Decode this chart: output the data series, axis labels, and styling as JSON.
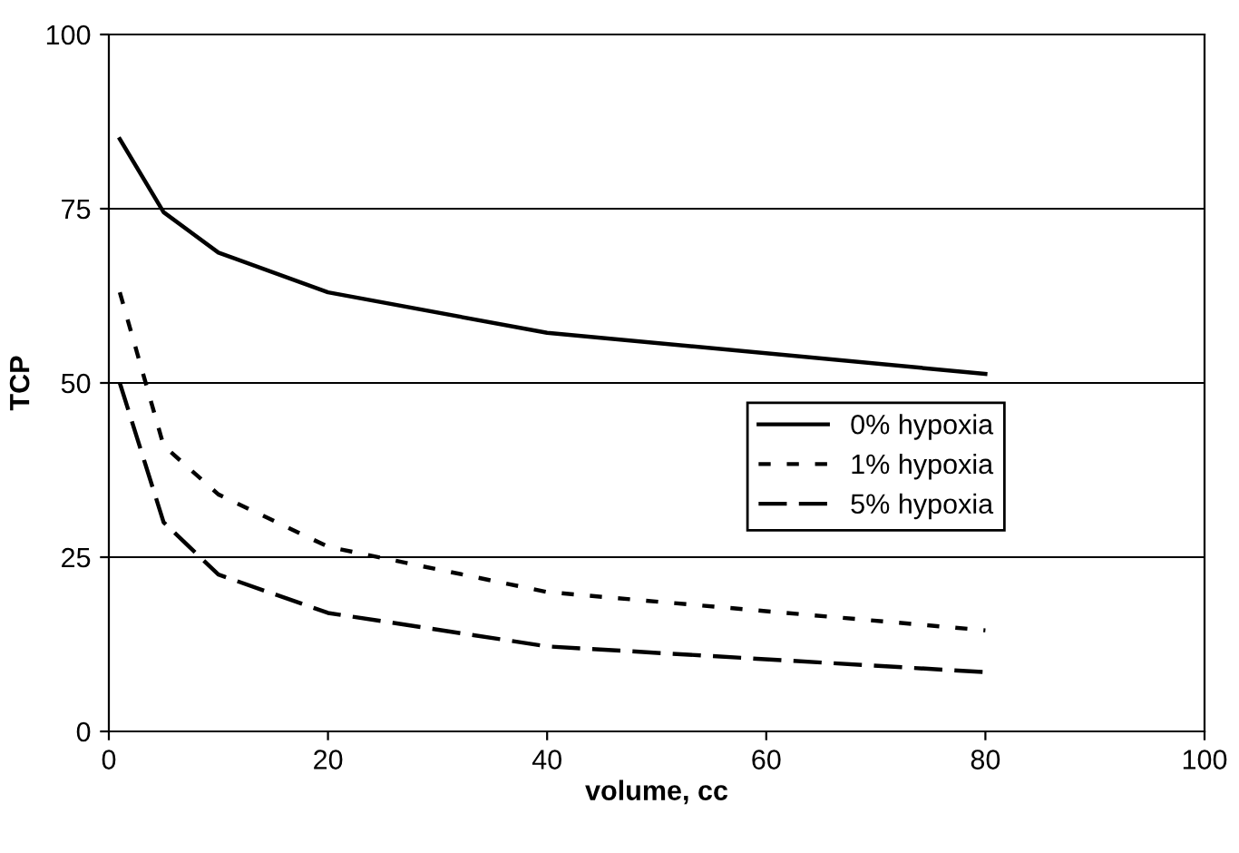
{
  "chart_data": {
    "type": "line",
    "xlabel": "volume, cc",
    "ylabel": "TCP",
    "xlim": [
      0,
      100
    ],
    "ylim": [
      0,
      100
    ],
    "xticks": [
      0,
      20,
      40,
      60,
      80,
      100
    ],
    "yticks": [
      0,
      25,
      50,
      75,
      100
    ],
    "grid": "y",
    "legend": "right",
    "marker": "none",
    "series": [
      {
        "name": "0% hypoxia",
        "color": "#000000",
        "line_style": "solid",
        "x": [
          1,
          5,
          10,
          20,
          40,
          80
        ],
        "values": [
          85,
          74.5,
          68.7,
          63,
          57.2,
          51.3
        ]
      },
      {
        "name": "1% hypoxia",
        "color": "#000000",
        "line_style": "dotted",
        "x": [
          1,
          5,
          10,
          20,
          40,
          80
        ],
        "values": [
          63,
          41,
          34,
          26.5,
          20,
          14.5
        ]
      },
      {
        "name": "5% hypoxia",
        "color": "#000000",
        "line_style": "dashed",
        "x": [
          1,
          5,
          10,
          20,
          40,
          80
        ],
        "values": [
          50,
          30,
          22.5,
          17,
          12.2,
          8.5
        ]
      }
    ]
  }
}
